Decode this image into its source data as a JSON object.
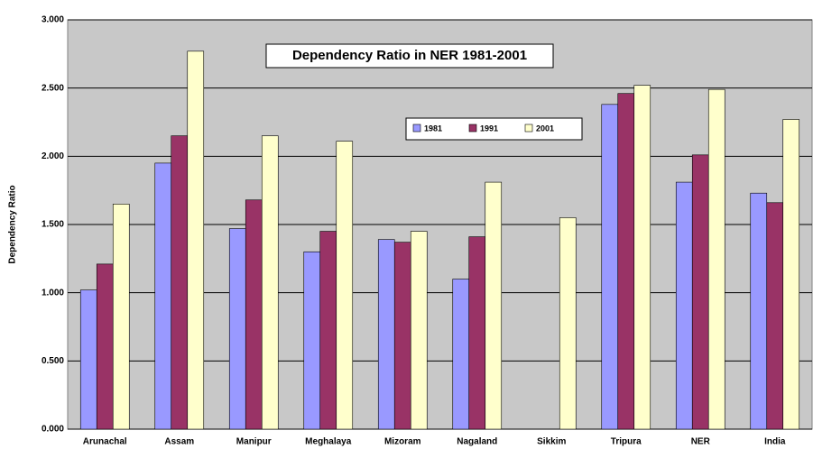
{
  "chart_data": {
    "type": "bar",
    "title": "Dependency Ratio in NER 1981-2001",
    "y_label": "Dependency Ratio",
    "categories": [
      "Arunachal",
      "Assam",
      "Manipur",
      "Meghalaya",
      "Mizoram",
      "Nagaland",
      "Sikkim",
      "Tripura",
      "NER",
      "India"
    ],
    "series": [
      {
        "name": "1981",
        "color": "#9999ff",
        "values": [
          1.02,
          1.95,
          1.47,
          1.3,
          1.39,
          1.1,
          null,
          2.38,
          1.81,
          1.73
        ]
      },
      {
        "name": "1991",
        "color": "#993366",
        "values": [
          1.21,
          2.15,
          1.68,
          1.45,
          1.37,
          1.41,
          null,
          2.46,
          2.01,
          1.66
        ]
      },
      {
        "name": "2001",
        "color": "#ffffcc",
        "values": [
          1.65,
          2.77,
          2.15,
          2.11,
          1.45,
          1.81,
          1.55,
          2.52,
          2.49,
          2.27
        ]
      }
    ],
    "ylim": [
      0,
      3
    ],
    "yticks": [
      {
        "value": 0,
        "label": "0.000"
      },
      {
        "value": 0.5,
        "label": "0.500"
      },
      {
        "value": 1,
        "label": "1.000"
      },
      {
        "value": 1.5,
        "label": "1.500"
      },
      {
        "value": 2,
        "label": "2.000"
      },
      {
        "value": 2.5,
        "label": "2.500"
      },
      {
        "value": 3,
        "label": "3.000"
      }
    ],
    "grid": true
  }
}
